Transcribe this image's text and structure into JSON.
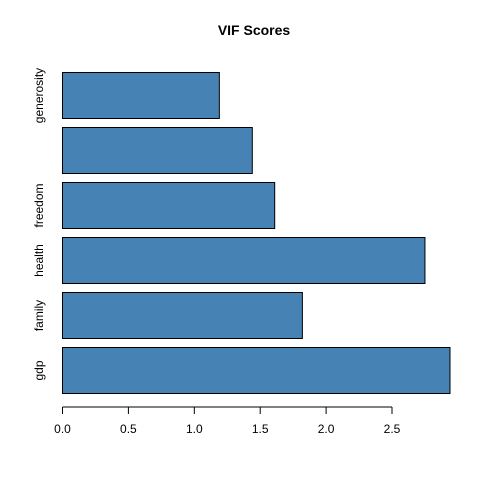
{
  "chart_data": {
    "type": "bar",
    "orientation": "horizontal",
    "title": "VIF Scores",
    "xlabel": "",
    "ylabel": "",
    "categories": [
      "gdp",
      "family",
      "health",
      "freedom",
      "",
      "generosity"
    ],
    "values": [
      2.94,
      1.82,
      2.75,
      1.61,
      1.44,
      1.19
    ],
    "xlim": [
      0,
      2.94
    ],
    "x_ticks": [
      "0.0",
      "0.5",
      "1.0",
      "1.5",
      "2.0",
      "2.5"
    ],
    "colors": {
      "bar": "#4682b4",
      "bar_border": "#000000"
    },
    "grid": false,
    "legend": "none"
  }
}
